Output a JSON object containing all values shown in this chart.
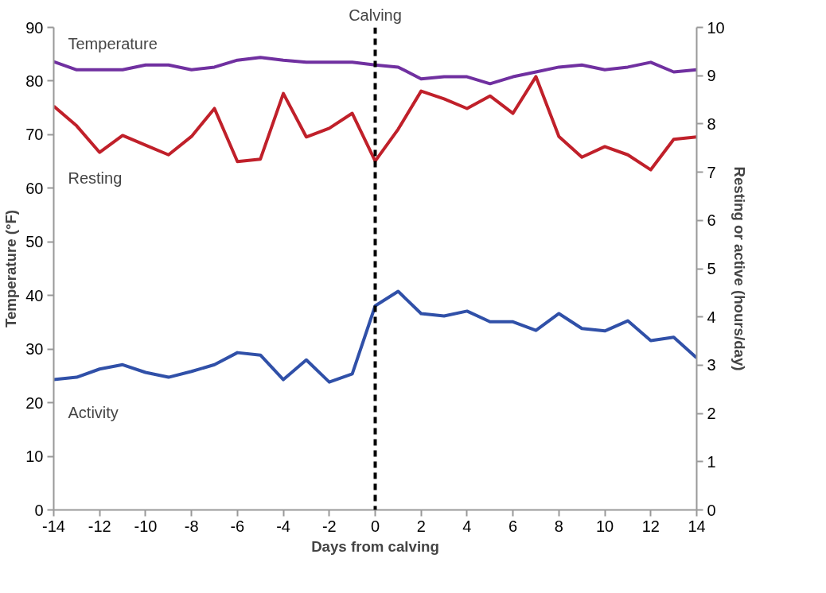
{
  "chart_data": {
    "type": "line",
    "xlabel": "Days from calving",
    "ylabel": "Temperature (°F)",
    "y2label": "Resting or active (hours/day)",
    "x": [
      -14,
      -13,
      -12,
      -11,
      -10,
      -9,
      -8,
      -7,
      -6,
      -5,
      -4,
      -3,
      -2,
      -1,
      0,
      1,
      2,
      3,
      4,
      5,
      6,
      7,
      8,
      9,
      10,
      11,
      12,
      13,
      14
    ],
    "series": [
      {
        "name": "Temperature",
        "color": "#7030a0",
        "values": [
          83.6,
          82.1,
          82.1,
          82.1,
          83.0,
          83.0,
          82.1,
          82.6,
          83.9,
          84.4,
          83.9,
          83.5,
          83.5,
          83.5,
          83.0,
          82.6,
          80.4,
          80.8,
          80.8,
          79.5,
          80.8,
          81.7,
          82.6,
          83.0,
          82.1,
          82.6,
          83.5,
          81.7,
          82.1
        ]
      },
      {
        "name": "Resting",
        "color": "#c0202a",
        "axis": "y2",
        "values": [
          8.37,
          7.96,
          7.41,
          7.76,
          7.56,
          7.36,
          7.74,
          8.32,
          7.22,
          7.27,
          8.63,
          7.73,
          7.91,
          8.22,
          7.23,
          7.89,
          8.68,
          8.52,
          8.32,
          8.58,
          8.22,
          8.98,
          7.74,
          7.31,
          7.53,
          7.36,
          7.05,
          7.68,
          7.73
        ]
      },
      {
        "name": "Activity",
        "color": "#3050a8",
        "axis": "y2",
        "values": [
          2.7,
          2.75,
          2.92,
          3.01,
          2.85,
          2.75,
          2.87,
          3.01,
          3.26,
          3.21,
          2.7,
          3.11,
          2.65,
          2.82,
          4.23,
          4.53,
          4.07,
          4.02,
          4.12,
          3.9,
          3.9,
          3.72,
          4.07,
          3.76,
          3.71,
          3.92,
          3.51,
          3.58,
          3.15
        ]
      }
    ],
    "xlim": [
      -14,
      14
    ],
    "xticks": [
      -14,
      -12,
      -10,
      -8,
      -6,
      -4,
      -2,
      0,
      2,
      4,
      6,
      8,
      10,
      12,
      14
    ],
    "ylim": [
      0,
      90
    ],
    "yticks": [
      0,
      10,
      20,
      30,
      40,
      50,
      60,
      70,
      80,
      90
    ],
    "y2lim": [
      0,
      10
    ],
    "y2ticks": [
      0,
      1,
      2,
      3,
      4,
      5,
      6,
      7,
      8,
      9,
      10
    ],
    "ref_lines": [
      {
        "axis": "x",
        "value": 0,
        "label": "Calving",
        "color": "#000000",
        "line_style": "dashed"
      }
    ],
    "grid": false,
    "marker": "none",
    "line_style": "solid"
  }
}
